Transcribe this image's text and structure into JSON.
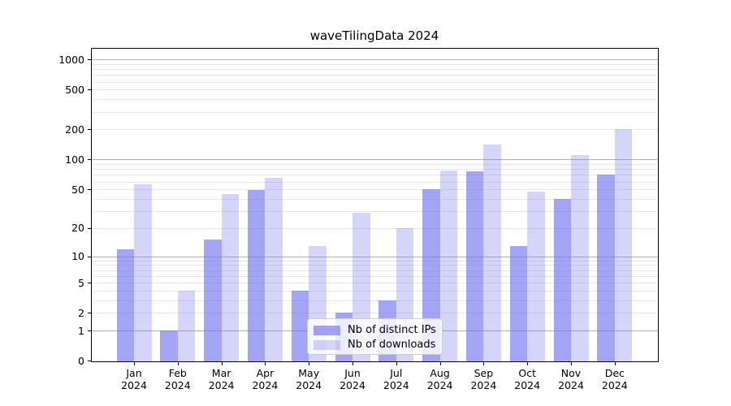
{
  "chart_data": {
    "type": "bar",
    "title": "waveTilingData 2024",
    "categories": [
      "Jan",
      "Feb",
      "Mar",
      "Apr",
      "May",
      "Jun",
      "Jul",
      "Aug",
      "Sep",
      "Oct",
      "Nov",
      "Dec"
    ],
    "xtick_year": "2024",
    "series": [
      {
        "name": "Nb of distinct IPs",
        "color": "#7373ee",
        "alpha": 0.65,
        "values": [
          12,
          1,
          15,
          49,
          4,
          2,
          3,
          50,
          76,
          13,
          40,
          70
        ]
      },
      {
        "name": "Nb of downloads",
        "color": "#7373ee",
        "alpha": 0.3,
        "values": [
          56,
          4,
          45,
          65,
          13,
          29,
          20,
          78,
          140,
          47,
          110,
          200
        ]
      }
    ],
    "yticks": [
      0,
      1,
      2,
      5,
      10,
      20,
      50,
      100,
      200,
      500,
      1000
    ],
    "y_scale": "log1p",
    "ylim": [
      0,
      1300
    ],
    "grid": {
      "major_color": "#b0b0b0",
      "minor_color": "#e7e7e7",
      "majors_at": [
        1,
        10,
        100,
        1000
      ]
    },
    "legend": {
      "position": "lower-center"
    }
  }
}
